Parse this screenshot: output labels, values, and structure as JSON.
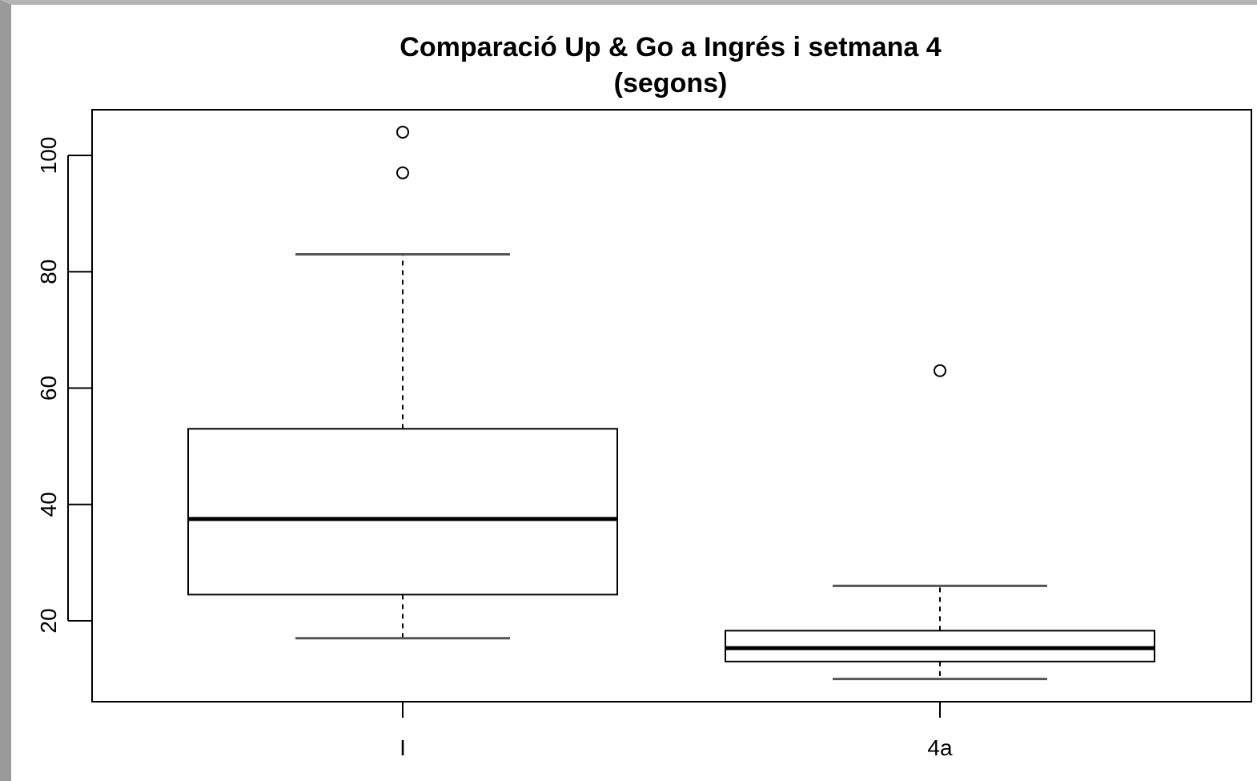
{
  "chart_data": {
    "type": "boxplot",
    "title_line1": "Comparació Up & Go a Ingrés i setmana 4",
    "title_line2": "(segons)",
    "xlabel": "",
    "ylabel": "",
    "ylim": [
      6,
      107
    ],
    "yticks": [
      "20",
      "40",
      "60",
      "80",
      "100"
    ],
    "categories": [
      "I",
      "4a"
    ],
    "boxes": [
      {
        "category": "I",
        "whisker_low": 17,
        "q1": 24.5,
        "median": 37.5,
        "q3": 53,
        "whisker_high": 83,
        "outliers": [
          97,
          104
        ]
      },
      {
        "category": "4a",
        "whisker_low": 10,
        "q1": 13,
        "median": 15.3,
        "q3": 18.3,
        "whisker_high": 26,
        "outliers": [
          63
        ]
      }
    ],
    "grid": false,
    "colors": {
      "box_fill": "#ffffff",
      "stroke": "#000000",
      "whisker_cap": "#555555"
    }
  }
}
